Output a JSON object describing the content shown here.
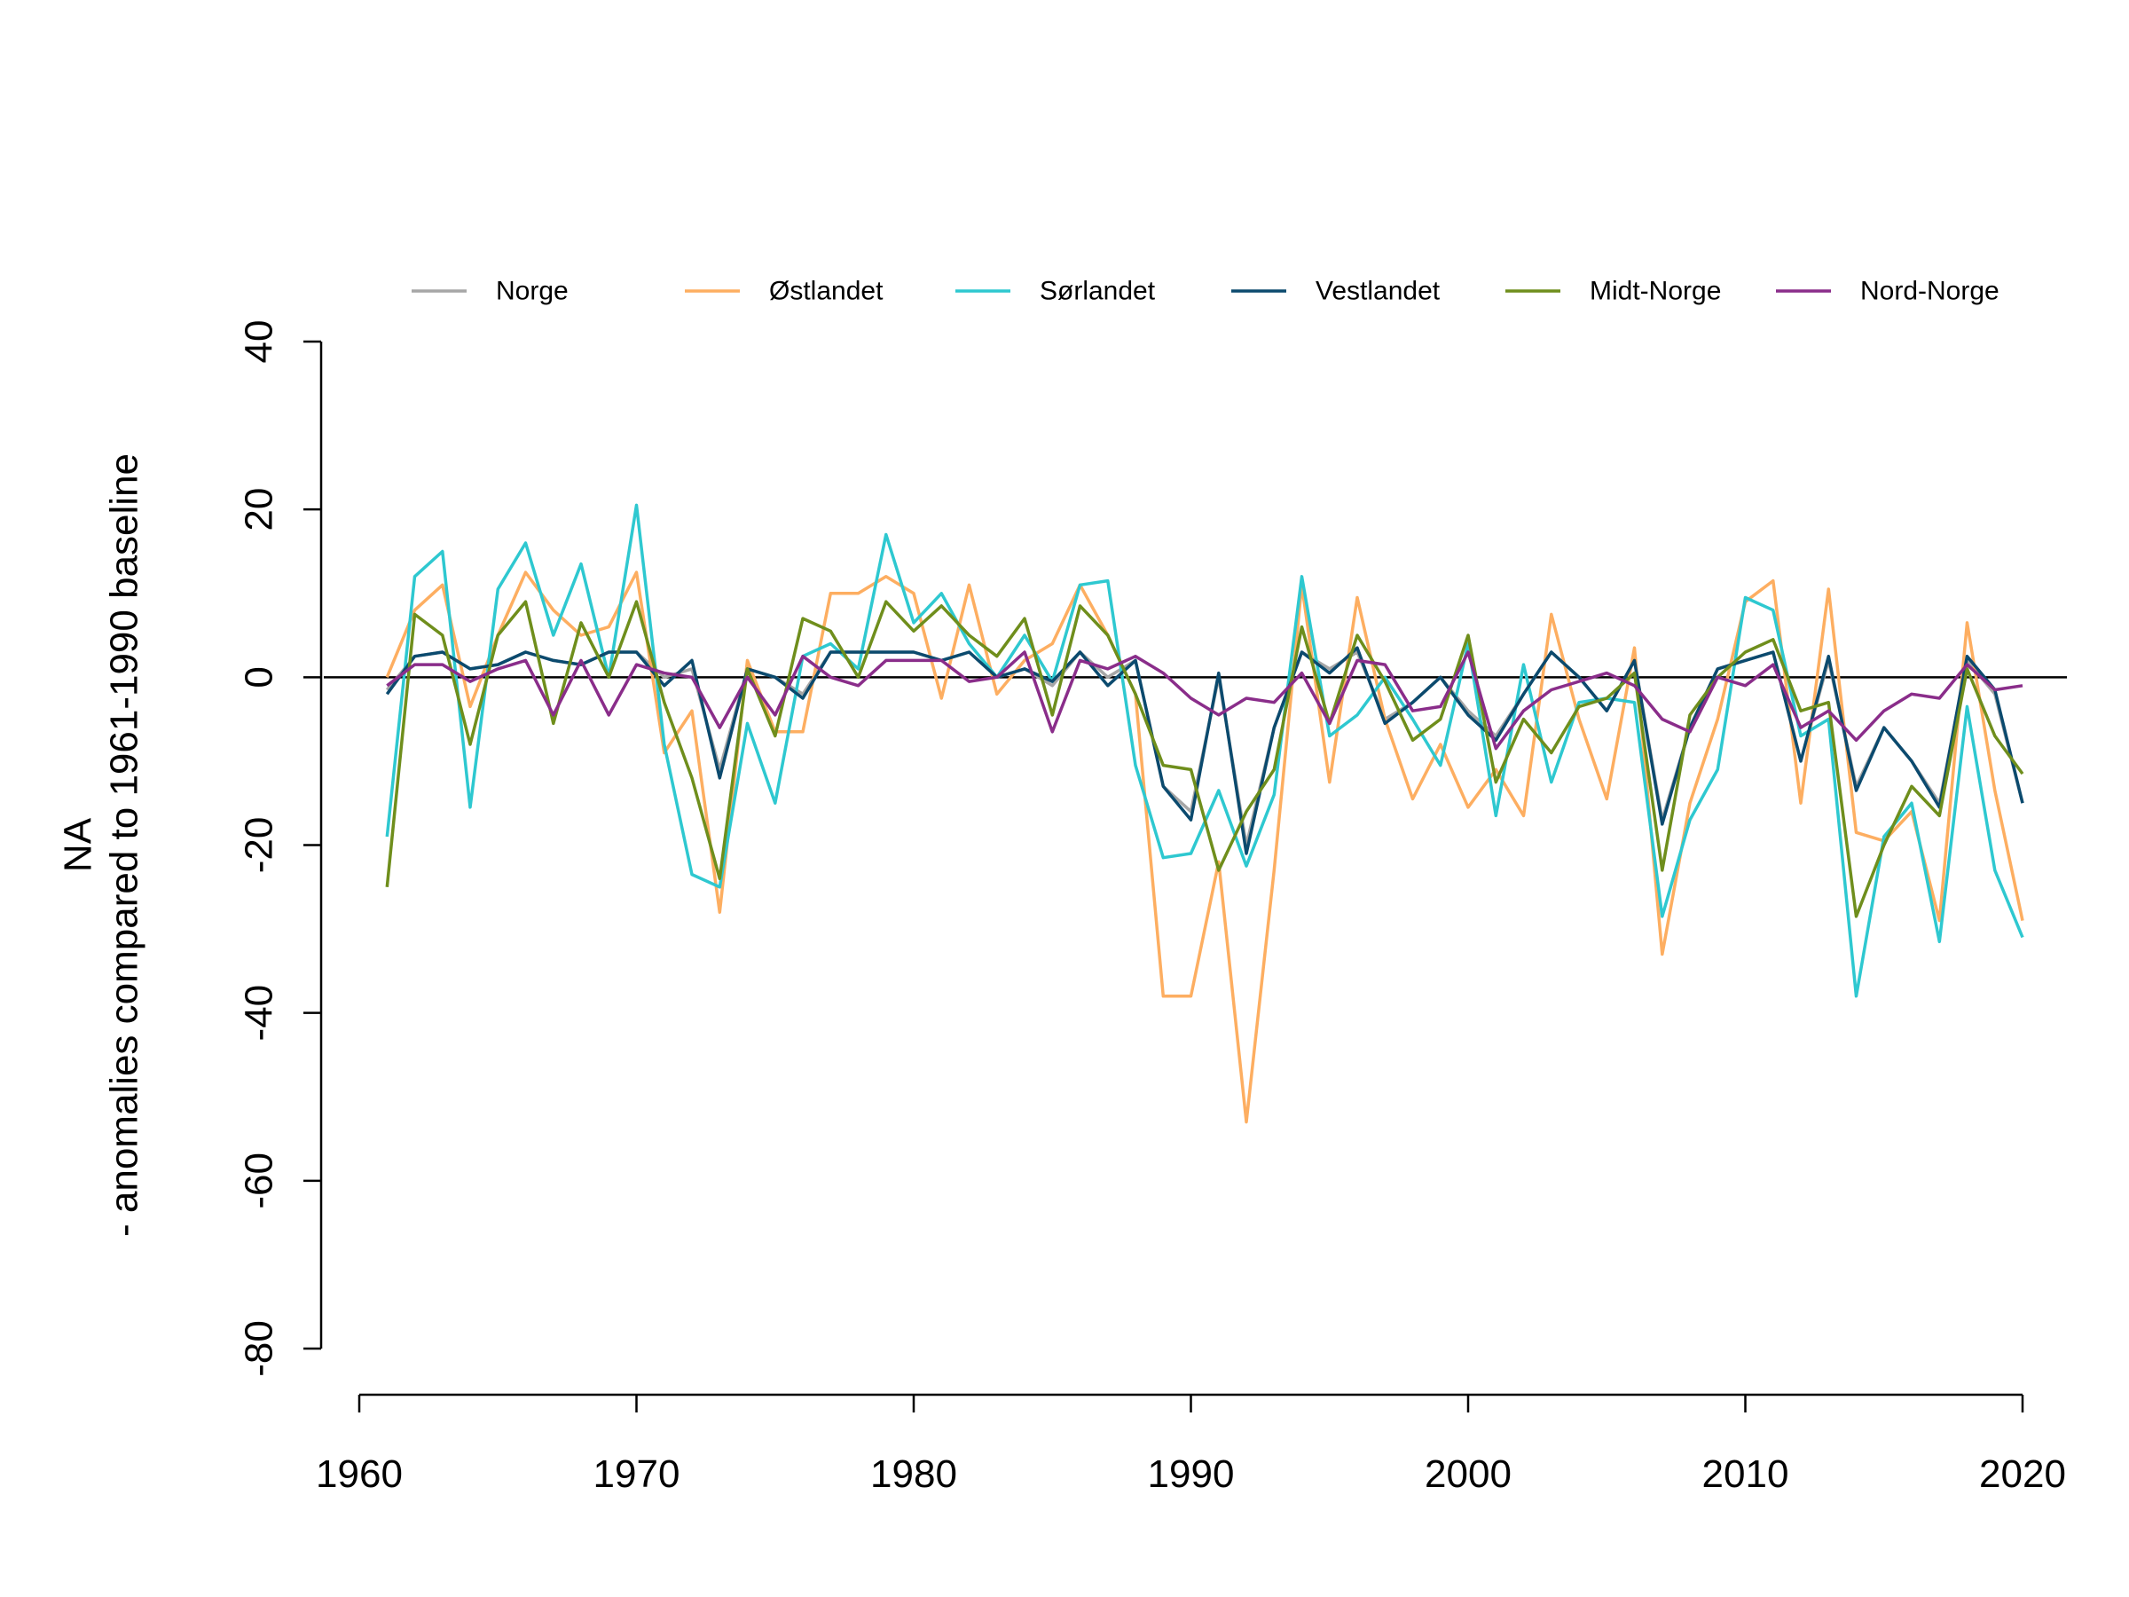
{
  "chart_data": {
    "type": "line",
    "title": "",
    "ylabel_lines": [
      "NA",
      "- anomalies compared to 1961-1990 baseline"
    ],
    "xlabel": "",
    "xlim": [
      1960,
      2020
    ],
    "ylim": [
      -80,
      40
    ],
    "x_ticks": [
      1960,
      1970,
      1980,
      1990,
      2000,
      2010,
      2020
    ],
    "y_ticks": [
      -80,
      -60,
      -40,
      -20,
      0,
      20,
      40
    ],
    "reference_line": 0,
    "legend_position": "top",
    "x": [
      1961,
      1962,
      1963,
      1964,
      1965,
      1966,
      1967,
      1968,
      1969,
      1970,
      1971,
      1972,
      1973,
      1974,
      1975,
      1976,
      1977,
      1978,
      1979,
      1980,
      1981,
      1982,
      1983,
      1984,
      1985,
      1986,
      1987,
      1988,
      1989,
      1990,
      1991,
      1992,
      1993,
      1994,
      1995,
      1996,
      1997,
      1998,
      1999,
      2000,
      2001,
      2002,
      2003,
      2004,
      2005,
      2006,
      2007,
      2008,
      2009,
      2010,
      2011,
      2012,
      2013,
      2014,
      2015,
      2016,
      2017,
      2018,
      2019,
      2020
    ],
    "series": [
      {
        "name": "Norge",
        "color": "#a6a6a6",
        "values": [
          -1.5,
          2.5,
          3,
          1,
          1.5,
          3,
          2,
          1.5,
          3,
          3,
          0,
          1,
          -11,
          1,
          0,
          -2,
          3,
          3,
          3,
          3,
          2,
          3,
          0,
          1,
          -1,
          3,
          0,
          2,
          -13,
          -16,
          0,
          -20,
          -6,
          3,
          1,
          3,
          -5,
          -3,
          0,
          -4,
          -7,
          -2,
          3,
          0,
          -4,
          2,
          -17,
          -6,
          1,
          2,
          3,
          -10,
          2,
          -13,
          -6,
          -10,
          -15,
          2,
          -2,
          -15
        ]
      },
      {
        "name": "Østlandet",
        "color": "#fdae61",
        "values": [
          0,
          8,
          11,
          -3.5,
          5,
          12.5,
          8,
          5,
          6,
          12.5,
          -9,
          -4,
          -28,
          2,
          -6.5,
          -6.5,
          10,
          10,
          12,
          10,
          -2.5,
          11,
          -2,
          2,
          4,
          11,
          5,
          -2,
          -38,
          -38,
          -22,
          -53,
          -23,
          11,
          -12.5,
          9.5,
          -5,
          -14.5,
          -8,
          -15.5,
          -11,
          -16.5,
          7.5,
          -5,
          -14.5,
          3.5,
          -33,
          -15,
          -5,
          9,
          11.5,
          -15,
          10.5,
          -18.5,
          -19.5,
          -16,
          -29,
          6.5,
          -13.5,
          -29
        ]
      },
      {
        "name": "Sørlandet",
        "color": "#2ec8d0",
        "values": [
          -19,
          12,
          15,
          -15.5,
          10.5,
          16,
          5,
          13.5,
          0,
          20.5,
          -8,
          -23.5,
          -25,
          -5.5,
          -15,
          2.5,
          4,
          1,
          17,
          6.5,
          10,
          4,
          0,
          5,
          -0.5,
          11,
          11.5,
          -10.5,
          -21.5,
          -21,
          -13.5,
          -22.5,
          -14,
          12,
          -7,
          -4.5,
          0,
          -5,
          -10.5,
          4,
          -16.5,
          1.5,
          -12.5,
          -3,
          -2.5,
          -3,
          -28.5,
          -17,
          -11,
          9.5,
          8,
          -7,
          -5,
          -38,
          -19,
          -15,
          -31.5,
          -3.5,
          -23,
          -31
        ]
      },
      {
        "name": "Vestlandet",
        "color": "#0b4a6e",
        "values": [
          -2,
          2.5,
          3,
          1,
          1.5,
          3,
          2,
          1.5,
          3,
          3,
          -1,
          2,
          -12,
          1,
          0,
          -2.5,
          3,
          3,
          3,
          3,
          2,
          3,
          0,
          1,
          -0.5,
          3,
          -1,
          2,
          -13,
          -17,
          0.5,
          -21,
          -6,
          3,
          0.5,
          3.5,
          -5.5,
          -3,
          0,
          -4.5,
          -7.5,
          -2,
          3,
          0,
          -4,
          2,
          -17.5,
          -6,
          1,
          2,
          3,
          -10,
          2.5,
          -13.5,
          -6,
          -10,
          -15.5,
          2.5,
          -1.5,
          -15
        ]
      },
      {
        "name": "Midt-Norge",
        "color": "#6f8e1c",
        "values": [
          -25,
          7.5,
          5,
          -8,
          5,
          9,
          -5.5,
          6.5,
          0,
          9,
          -3,
          -12,
          -24,
          1,
          -7,
          7,
          5.5,
          0,
          9,
          5.5,
          8.5,
          5,
          2.5,
          7,
          -4.5,
          8.5,
          5,
          -2,
          -10.5,
          -11,
          -23,
          -16,
          -11,
          6,
          -5.5,
          5,
          -0.5,
          -7.5,
          -5,
          5,
          -12.5,
          -5,
          -9,
          -3.5,
          -2.5,
          0.5,
          -23,
          -4.5,
          0,
          3,
          4.5,
          -4,
          -3,
          -28.5,
          -20,
          -13,
          -16.5,
          1,
          -7,
          -11.5
        ]
      },
      {
        "name": "Nord-Norge",
        "color": "#8a2d8a",
        "values": [
          -1,
          1.5,
          1.5,
          -0.5,
          1,
          2,
          -4.5,
          2,
          -4.5,
          1.5,
          0.5,
          0,
          -6,
          0,
          -4.5,
          2.5,
          0,
          -1,
          2,
          2,
          2,
          -0.5,
          0,
          3,
          -6.5,
          2,
          1,
          2.5,
          0.5,
          -2.5,
          -4.5,
          -2.5,
          -3,
          0.5,
          -5.5,
          2,
          1.5,
          -4,
          -3.5,
          3,
          -8.5,
          -4,
          -1.5,
          -0.5,
          0.5,
          -1,
          -5,
          -6.5,
          0,
          -1,
          1.5,
          -6,
          -4,
          -7.5,
          -4,
          -2,
          -2.5,
          1.5,
          -1.5,
          -1
        ]
      }
    ]
  }
}
